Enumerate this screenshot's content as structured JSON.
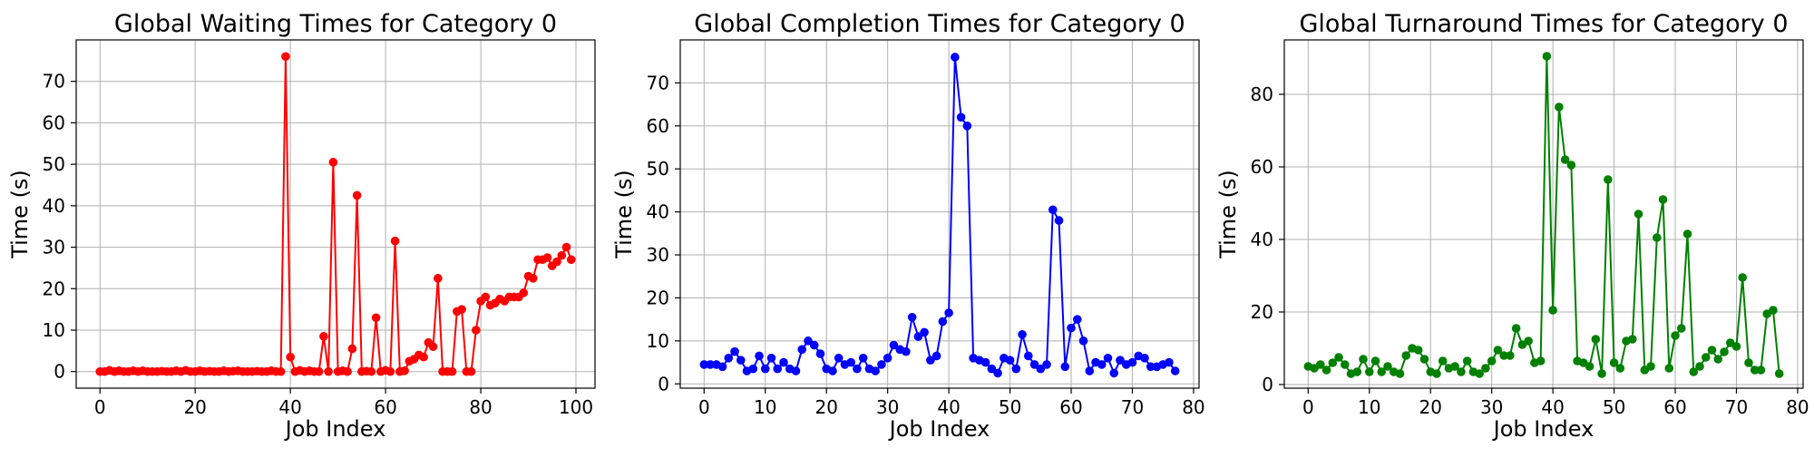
{
  "chart_data": [
    {
      "type": "line",
      "title": "Global Waiting Times for Category 0",
      "xlabel": "Job Index",
      "ylabel": "Time (s)",
      "xlim": [
        -5,
        104
      ],
      "ylim": [
        -4,
        80
      ],
      "xticks": [
        0,
        20,
        40,
        60,
        80,
        100
      ],
      "yticks": [
        0,
        10,
        20,
        30,
        40,
        50,
        60,
        70
      ],
      "grid": true,
      "color": "#ff0000",
      "series": [
        {
          "x": [
            0,
            1,
            2,
            3,
            4,
            5,
            6,
            7,
            8,
            9,
            10,
            11,
            12,
            13,
            14,
            15,
            16,
            17,
            18,
            19,
            20,
            21,
            22,
            23,
            24,
            25,
            26,
            27,
            28,
            29,
            30,
            31,
            32,
            33,
            34,
            35,
            36,
            37,
            38,
            39,
            40,
            41,
            42,
            43,
            44,
            45,
            46,
            47,
            48,
            49,
            50,
            51,
            52,
            53,
            54,
            55,
            56,
            57,
            58,
            59,
            60,
            61,
            62,
            63,
            64,
            65,
            66,
            67,
            68,
            69,
            70,
            71,
            72,
            73,
            74,
            75,
            76,
            77,
            78,
            79,
            80,
            81,
            82,
            83,
            84,
            85,
            86,
            87,
            88,
            89,
            90,
            91,
            92,
            93,
            94,
            95,
            96,
            97,
            98,
            99
          ],
          "y": [
            0,
            0,
            0.3,
            0,
            0.2,
            0,
            0,
            0.2,
            0,
            0.2,
            0,
            0,
            0,
            0.1,
            0,
            0,
            0.2,
            0,
            0.3,
            0,
            0,
            0.2,
            0,
            0.1,
            0,
            0,
            0.2,
            0,
            0.1,
            0.2,
            0,
            0,
            0,
            0.1,
            0,
            0,
            0.2,
            0,
            0,
            76,
            3.5,
            0,
            0.3,
            0,
            0.2,
            0,
            0,
            8.5,
            0,
            50.5,
            0,
            0.2,
            0,
            5.5,
            42.5,
            0,
            0.1,
            0,
            13,
            0,
            0.3,
            0,
            31.5,
            0,
            0.2,
            2.5,
            3,
            4,
            3.5,
            7,
            6,
            22.5,
            0,
            0,
            0,
            14.5,
            15,
            0,
            0,
            10,
            17,
            18,
            16,
            16.5,
            17.5,
            17,
            18,
            18,
            18,
            19,
            23,
            22.5,
            27,
            27,
            27.5,
            25.5,
            26.5,
            28,
            30,
            27
          ]
        }
      ]
    },
    {
      "type": "line",
      "title": "Global Completion Times for Category 0",
      "xlabel": "Job Index",
      "ylabel": "Time (s)",
      "xlim": [
        -3.9,
        80.9
      ],
      "ylim": [
        -1,
        80
      ],
      "xticks": [
        0,
        10,
        20,
        30,
        40,
        50,
        60,
        70,
        80
      ],
      "yticks": [
        0,
        10,
        20,
        30,
        40,
        50,
        60,
        70
      ],
      "grid": true,
      "color": "#0000ff",
      "series": [
        {
          "x": [
            0,
            1,
            2,
            3,
            4,
            5,
            6,
            7,
            8,
            9,
            10,
            11,
            12,
            13,
            14,
            15,
            16,
            17,
            18,
            19,
            20,
            21,
            22,
            23,
            24,
            25,
            26,
            27,
            28,
            29,
            30,
            31,
            32,
            33,
            34,
            35,
            36,
            37,
            38,
            39,
            40,
            41,
            42,
            43,
            44,
            45,
            46,
            47,
            48,
            49,
            50,
            51,
            52,
            53,
            54,
            55,
            56,
            57,
            58,
            59,
            60,
            61,
            62,
            63,
            64,
            65,
            66,
            67,
            68,
            69,
            70,
            71,
            72,
            73,
            74,
            75,
            76,
            77
          ],
          "y": [
            4.5,
            4.5,
            4.5,
            4,
            6,
            7.5,
            5.5,
            3,
            3.5,
            6.5,
            3.5,
            6,
            3.5,
            5,
            3.5,
            3,
            8,
            10,
            9,
            7,
            3.5,
            3,
            6,
            4.5,
            5,
            3.5,
            6,
            3.5,
            3,
            4.5,
            6,
            9,
            8,
            7.5,
            15.5,
            11,
            12,
            5.5,
            6.5,
            14.5,
            16.5,
            76,
            62,
            60,
            6,
            5.5,
            5,
            3.5,
            2.5,
            6,
            5.5,
            3.5,
            11.5,
            6.5,
            4.5,
            3.5,
            4.5,
            40.5,
            38,
            4,
            13,
            15,
            10,
            3,
            5,
            4.5,
            6,
            2.5,
            5.5,
            4.5,
            5,
            6.5,
            6,
            4,
            4,
            4.5,
            5,
            3
          ]
        }
      ]
    },
    {
      "type": "line",
      "title": "Global Turnaround Times for Category 0",
      "xlabel": "Job Index",
      "ylabel": "Time (s)",
      "xlim": [
        -3.9,
        80.9
      ],
      "ylim": [
        -1,
        95
      ],
      "xticks": [
        0,
        10,
        20,
        30,
        40,
        50,
        60,
        70,
        80
      ],
      "yticks": [
        0,
        20,
        40,
        60,
        80
      ],
      "grid": true,
      "color": "#008000",
      "series": [
        {
          "x": [
            0,
            1,
            2,
            3,
            4,
            5,
            6,
            7,
            8,
            9,
            10,
            11,
            12,
            13,
            14,
            15,
            16,
            17,
            18,
            19,
            20,
            21,
            22,
            23,
            24,
            25,
            26,
            27,
            28,
            29,
            30,
            31,
            32,
            33,
            34,
            35,
            36,
            37,
            38,
            39,
            40,
            41,
            42,
            43,
            44,
            45,
            46,
            47,
            48,
            49,
            50,
            51,
            52,
            53,
            54,
            55,
            56,
            57,
            58,
            59,
            60,
            61,
            62,
            63,
            64,
            65,
            66,
            67,
            68,
            69,
            70,
            71,
            72,
            73,
            74,
            75,
            76,
            77
          ],
          "y": [
            5,
            4.5,
            5.5,
            4,
            6,
            7.5,
            5.5,
            3,
            3.5,
            7,
            3.5,
            6.5,
            3.5,
            5,
            3.5,
            3,
            8,
            10,
            9.5,
            7,
            3.5,
            3,
            6.5,
            4.5,
            5,
            3.5,
            6.5,
            3.5,
            3,
            4.5,
            6.5,
            9.5,
            8,
            8,
            15.5,
            11,
            12,
            6,
            6.5,
            90.5,
            20.5,
            76.5,
            62,
            60.5,
            6.5,
            6,
            5,
            12.5,
            3,
            56.5,
            6,
            4.5,
            12,
            12.5,
            47,
            4,
            5,
            40.5,
            51,
            4.5,
            13.5,
            15.5,
            41.5,
            3.5,
            5,
            7.5,
            9.5,
            7,
            9,
            11.5,
            10.5,
            29.5,
            6,
            4,
            4,
            19.5,
            20.5,
            3
          ]
        }
      ]
    }
  ]
}
